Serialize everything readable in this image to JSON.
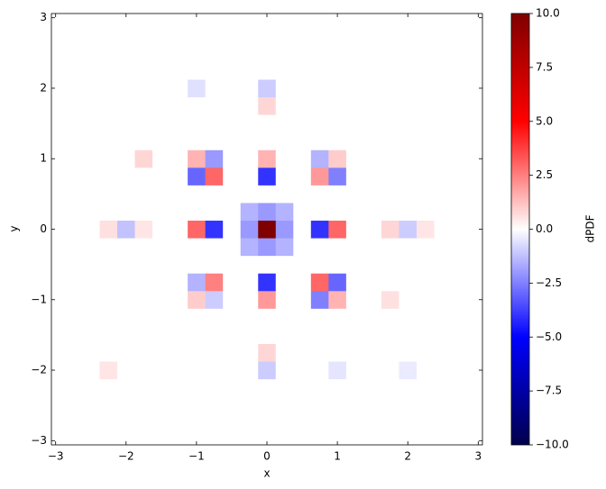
{
  "chart_data": {
    "type": "heatmap",
    "colormap": "seismic",
    "xlabel": "x",
    "ylabel": "y",
    "colorbar_label": "dPDF",
    "x": [
      -3,
      -2.75,
      -2.5,
      -2.25,
      -2,
      -1.75,
      -1.5,
      -1.25,
      -1,
      -0.75,
      -0.5,
      -0.25,
      0,
      0.25,
      0.5,
      0.75,
      1,
      1.25,
      1.5,
      1.75,
      2,
      2.25,
      2.5,
      2.75,
      3
    ],
    "y": [
      -3,
      -2.75,
      -2.5,
      -2.25,
      -2,
      -1.75,
      -1.5,
      -1.25,
      -1,
      -0.75,
      -0.5,
      -0.25,
      0,
      0.25,
      0.5,
      0.75,
      1,
      1.25,
      1.5,
      1.75,
      2,
      2.25,
      2.5,
      2.75,
      3
    ],
    "z": [
      [
        0,
        0,
        0,
        0,
        0,
        0,
        0,
        0,
        0,
        0,
        0,
        0,
        0,
        0,
        0,
        0,
        0,
        0,
        0,
        0,
        0,
        0,
        0,
        0,
        0
      ],
      [
        0,
        0,
        0,
        0,
        0,
        0,
        0,
        0,
        0,
        0,
        0,
        0,
        0,
        0,
        0,
        0,
        0,
        0,
        0,
        0,
        0,
        0,
        0,
        0,
        0
      ],
      [
        0,
        0,
        0,
        0,
        0,
        0,
        0,
        0,
        0,
        0,
        0,
        0,
        0,
        0,
        0,
        0,
        0,
        0,
        0,
        0,
        0,
        0,
        0,
        0,
        0
      ],
      [
        0,
        0,
        0,
        0,
        0,
        0,
        0,
        0,
        0,
        0,
        0,
        0,
        0,
        0,
        0,
        0,
        0,
        0,
        0,
        0,
        0,
        0,
        0,
        0,
        0
      ],
      [
        0,
        0,
        0,
        0.5,
        0,
        0,
        0,
        0,
        0,
        0,
        0,
        0,
        -1,
        0,
        0,
        0,
        -0.5,
        0,
        0,
        0,
        -0.4,
        0,
        0,
        0,
        0
      ],
      [
        0,
        0,
        0,
        0,
        0,
        0,
        0,
        0,
        0,
        0,
        0,
        0,
        0.8,
        0,
        0,
        0,
        0,
        0,
        0,
        0,
        0,
        0,
        0,
        0,
        0
      ],
      [
        0,
        0,
        0,
        0,
        0,
        0,
        0,
        0,
        0,
        0,
        0,
        0,
        0,
        0,
        0,
        0,
        0,
        0,
        0,
        0,
        0,
        0,
        0,
        0,
        0
      ],
      [
        0,
        0,
        0,
        0,
        0,
        0,
        0,
        0,
        0,
        0,
        0,
        0,
        0,
        0,
        0,
        0,
        0,
        0,
        0,
        0,
        0,
        0,
        0,
        0,
        0
      ],
      [
        0,
        0,
        0,
        0,
        0,
        0,
        0,
        0,
        1,
        -1,
        0,
        0,
        2,
        0,
        0,
        -2.5,
        1.5,
        0,
        0,
        0.6,
        0,
        0,
        0,
        0,
        0
      ],
      [
        0,
        0,
        0,
        0,
        0,
        0,
        0,
        0,
        -1.5,
        2.5,
        0,
        0,
        -4,
        0,
        0,
        3,
        -3,
        0,
        0,
        0,
        0,
        0,
        0,
        0,
        0
      ],
      [
        0,
        0,
        0,
        0,
        0,
        0,
        0,
        0,
        0,
        0,
        0,
        0,
        0,
        0,
        0,
        0,
        0,
        0,
        0,
        0,
        0,
        0,
        0,
        0,
        0
      ],
      [
        0,
        0,
        0,
        0,
        0,
        0,
        0,
        0,
        0,
        0,
        0,
        -1.5,
        -2,
        -1.5,
        0,
        0,
        0,
        0,
        0,
        0,
        0,
        0,
        0,
        0,
        0
      ],
      [
        0,
        0,
        0,
        0.6,
        -1.2,
        0.5,
        0,
        0,
        3,
        -4,
        0,
        -2,
        10,
        -2,
        0,
        -4,
        3,
        0,
        0,
        0.8,
        -1,
        0.5,
        0,
        0,
        0
      ],
      [
        0,
        0,
        0,
        0,
        0,
        0,
        0,
        0,
        0,
        0,
        0,
        -1.5,
        -2,
        -1.5,
        0,
        0,
        0,
        0,
        0,
        0,
        0,
        0,
        0,
        0,
        0
      ],
      [
        0,
        0,
        0,
        0,
        0,
        0,
        0,
        0,
        0,
        0,
        0,
        0,
        0,
        0,
        0,
        0,
        0,
        0,
        0,
        0,
        0,
        0,
        0,
        0,
        0
      ],
      [
        0,
        0,
        0,
        0,
        0,
        0,
        0,
        0,
        -3,
        3,
        0,
        0,
        -4,
        0,
        0,
        2,
        -2.5,
        0,
        0,
        0,
        0,
        0,
        0,
        0,
        0
      ],
      [
        0,
        0,
        0,
        0,
        0,
        0.8,
        0,
        0,
        1.5,
        -2,
        0,
        0,
        1.5,
        0,
        0,
        -1.5,
        1,
        0,
        0,
        0,
        0,
        0,
        0,
        0,
        0
      ],
      [
        0,
        0,
        0,
        0,
        0,
        0,
        0,
        0,
        0,
        0,
        0,
        0,
        0,
        0,
        0,
        0,
        0,
        0,
        0,
        0,
        0,
        0,
        0,
        0,
        0
      ],
      [
        0,
        0,
        0,
        0,
        0,
        0,
        0,
        0,
        0,
        0,
        0,
        0,
        0,
        0,
        0,
        0,
        0,
        0,
        0,
        0,
        0,
        0,
        0,
        0,
        0
      ],
      [
        0,
        0,
        0,
        0,
        0,
        0,
        0,
        0,
        0,
        0,
        0,
        0,
        0.8,
        0,
        0,
        0,
        0,
        0,
        0,
        0,
        0,
        0,
        0,
        0,
        0
      ],
      [
        0,
        0,
        0,
        0,
        0,
        0,
        0,
        0,
        -0.6,
        0,
        0,
        0,
        -1,
        0,
        0,
        0,
        0,
        0,
        0,
        0,
        0,
        0,
        0,
        0,
        0
      ],
      [
        0,
        0,
        0,
        0,
        0,
        0,
        0,
        0,
        0,
        0,
        0,
        0,
        0,
        0,
        0,
        0,
        0,
        0,
        0,
        0,
        0,
        0,
        0,
        0,
        0
      ],
      [
        0,
        0,
        0,
        0,
        0,
        0,
        0,
        0,
        0,
        0,
        0,
        0,
        0,
        0,
        0,
        0,
        0,
        0,
        0,
        0,
        0,
        0,
        0,
        0,
        0
      ],
      [
        0,
        0,
        0,
        0,
        0,
        0,
        0,
        0,
        0,
        0,
        0,
        0,
        0,
        0,
        0,
        0,
        0,
        0,
        0,
        0,
        0,
        0,
        0,
        0,
        0
      ],
      [
        0,
        0,
        0,
        0,
        0,
        0,
        0,
        0,
        0,
        0,
        0,
        0,
        0,
        0,
        0,
        0,
        0,
        0,
        0,
        0,
        0,
        0,
        0,
        0,
        0
      ]
    ],
    "xlim": [
      -3.06,
      3.06
    ],
    "ylim": [
      -3.06,
      3.06
    ],
    "xticks": [
      {
        "value": -3,
        "label": "−3"
      },
      {
        "value": -2,
        "label": "−2"
      },
      {
        "value": -1,
        "label": "−1"
      },
      0,
      1,
      2,
      3
    ],
    "yticks": [
      {
        "value": -3,
        "label": "−3"
      },
      {
        "value": -2,
        "label": "−2"
      },
      {
        "value": -1,
        "label": "−1"
      },
      0,
      1,
      2,
      3
    ],
    "clim": [
      -10,
      10
    ],
    "cticks": [
      {
        "value": -10,
        "label": "−10.0"
      },
      {
        "value": -7.5,
        "label": "−7.5"
      },
      {
        "value": -5,
        "label": "−5.0"
      },
      {
        "value": -2.5,
        "label": "−2.5"
      },
      {
        "value": 0,
        "label": "0.0"
      },
      {
        "value": 2.5,
        "label": "2.5"
      },
      {
        "value": 5,
        "label": "5.0"
      },
      {
        "value": 7.5,
        "label": "7.5"
      },
      {
        "value": 10,
        "label": "10.0"
      }
    ]
  }
}
